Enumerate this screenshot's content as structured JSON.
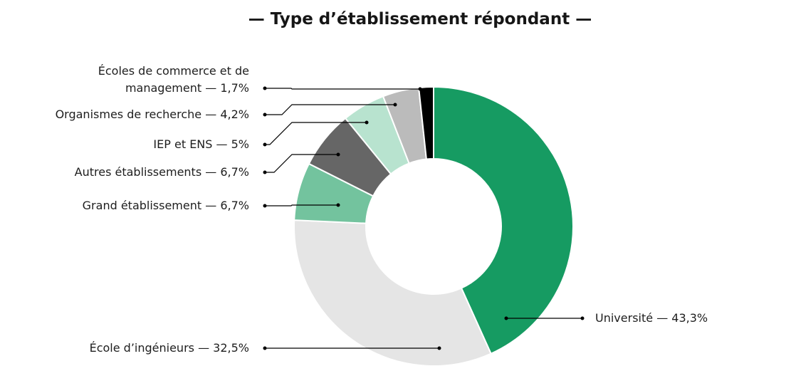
{
  "chart_data": {
    "type": "donut",
    "title": "— Type d’établissement répondant —",
    "label_separator": "—",
    "categories": [
      "Université",
      "École d’ingénieurs",
      "Grand établissement",
      "Autres établissements",
      "IEP et ENS",
      "Organismes de recherche",
      "Écoles de commerce et de management"
    ],
    "values": [
      43.3,
      32.5,
      6.7,
      6.7,
      5,
      4.2,
      1.7
    ],
    "value_labels": [
      "43,3%",
      "32,5%",
      "6,7%",
      "6,7%",
      "5%",
      "4,2%",
      "1,7%"
    ],
    "colors": [
      "#169b62",
      "#e5e5e5",
      "#73c39e",
      "#666666",
      "#b8e3cf",
      "#bbbbbb",
      "#000000"
    ]
  }
}
